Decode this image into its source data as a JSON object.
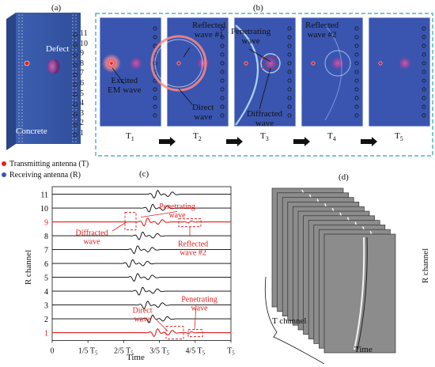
{
  "panel_a": {
    "label": "(a)",
    "defect": "Defect",
    "concrete": "Concrete",
    "channels": [
      "11",
      "10",
      "9",
      "8",
      "7",
      "6",
      "5",
      "4",
      "3",
      "2",
      "1"
    ],
    "legend_tx": "Transmitting antenna (T)",
    "legend_rx": "Receiving antenna (R)"
  },
  "panel_b": {
    "label": "(b)",
    "frames": [
      "T1",
      "T2",
      "T3",
      "T4",
      "T5"
    ],
    "ann": {
      "excited": [
        "Excited",
        "EM wave"
      ],
      "reflected1": [
        "Reflected",
        "wave #1"
      ],
      "direct": [
        "Direct",
        "wave"
      ],
      "penetrating": [
        "Penetrating",
        "wave"
      ],
      "diffracted": [
        "Diffracted",
        "wave"
      ],
      "reflected2": [
        "Reflected",
        "wave #2"
      ]
    }
  },
  "panel_c": {
    "label": "(c)",
    "ylabel": "R channel",
    "xlabel": "Time",
    "xticks": [
      "0",
      "1/5 T5",
      "2/5 T5",
      "3/5 T5",
      "4/5 T5",
      "T5"
    ],
    "ann": {
      "penetrating_top": [
        "Penetrating",
        "wave"
      ],
      "diffracted": [
        "Diffracted",
        "wave"
      ],
      "reflected2": [
        "Reflected",
        "wave #2"
      ],
      "penetrating_bottom": [
        "Penetrating",
        "wave"
      ],
      "direct": [
        "Direct",
        "wave"
      ]
    }
  },
  "panel_d": {
    "label": "(d)",
    "ylabel": "R channel",
    "xlabel": "Time",
    "tchannel": "T channel"
  },
  "chart_data": {
    "type": "line",
    "xlabel": "Time",
    "ylabel": "R channel",
    "categories": [
      "11",
      "10",
      "9",
      "8",
      "7",
      "6",
      "5",
      "4",
      "3",
      "2",
      "1"
    ],
    "xticks": [
      "0",
      "1/5 T5",
      "2/5 T5",
      "3/5 T5",
      "4/5 T5",
      "T5"
    ],
    "highlighted_channels": [
      "9",
      "1"
    ],
    "colors": {
      "highlight": "#e02020",
      "trace": "#000000"
    }
  },
  "colors": {
    "field": "#3a55b0",
    "frame_border": "#2aa0b8",
    "red": "#e02020"
  }
}
